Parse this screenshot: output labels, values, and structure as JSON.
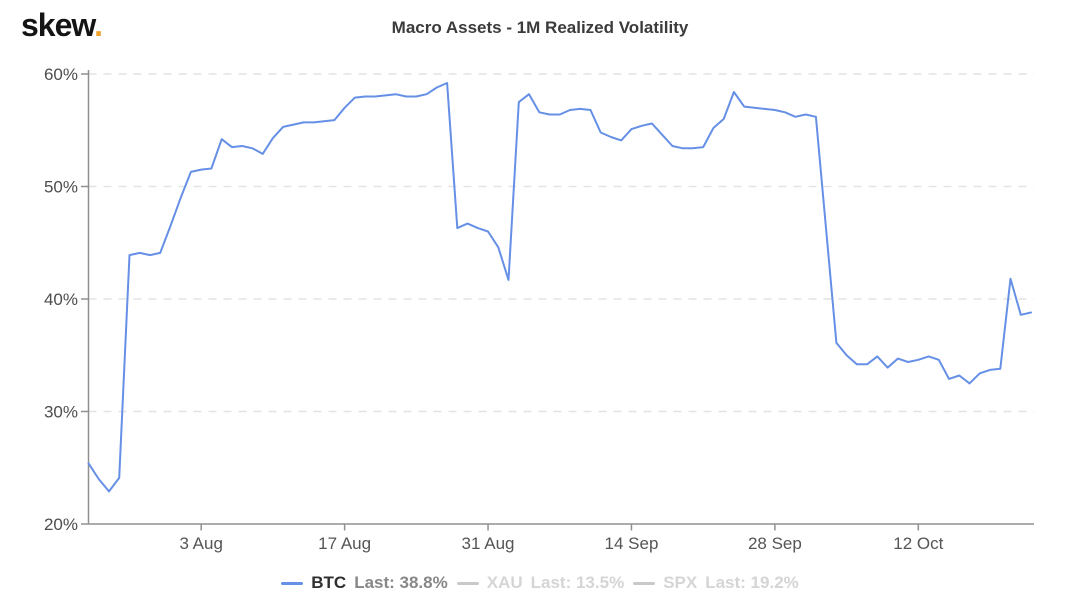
{
  "logo": {
    "text": "skew",
    "dot": "."
  },
  "header": {
    "title": "Macro Assets - 1M Realized Volatility"
  },
  "colors": {
    "btc_line": "#6690e6",
    "inactive_text": "#d5d5d5",
    "inactive_dash": "#c9c9c9",
    "grid": "#e3e3e3",
    "axis": "#909090",
    "title_text": "#3b3b3b",
    "tick_text": "#4d4d4d",
    "logo_dot": "#f0a42e"
  },
  "chart_data": {
    "type": "line",
    "title": "Macro Assets - 1M Realized Volatility",
    "xlabel": "",
    "ylabel": "",
    "ylim": [
      20,
      60
    ],
    "y_ticks": [
      60,
      50,
      40,
      30,
      20
    ],
    "y_tick_suffix": "%",
    "grid": "horizontal-dashed",
    "legend_position": "bottom",
    "total_days": 92,
    "x_ticks": [
      {
        "label": "3 Aug",
        "day": 11
      },
      {
        "label": "17 Aug",
        "day": 25
      },
      {
        "label": "31 Aug",
        "day": 39
      },
      {
        "label": "14 Sep",
        "day": 53
      },
      {
        "label": "28 Sep",
        "day": 67
      },
      {
        "label": "12 Oct",
        "day": 81
      }
    ],
    "series": [
      {
        "name": "BTC",
        "last_label": "Last: 38.8%",
        "last_value": 38.8,
        "active": true,
        "color": "#6690e6",
        "values": [
          25.4,
          24.0,
          22.9,
          24.1,
          43.9,
          44.1,
          43.9,
          44.1,
          46.5,
          49.0,
          51.3,
          51.5,
          51.6,
          54.2,
          53.5,
          53.6,
          53.4,
          52.9,
          54.3,
          55.3,
          55.5,
          55.7,
          55.7,
          55.8,
          55.9,
          57.0,
          57.9,
          58.0,
          58.0,
          58.1,
          58.2,
          58.0,
          58.0,
          58.2,
          58.8,
          59.2,
          46.3,
          46.7,
          46.3,
          46.0,
          44.6,
          41.7,
          57.5,
          58.2,
          56.6,
          56.4,
          56.4,
          56.8,
          56.9,
          56.8,
          54.8,
          54.4,
          54.1,
          55.1,
          55.4,
          55.6,
          54.6,
          53.6,
          53.4,
          53.4,
          53.5,
          55.2,
          56.0,
          58.4,
          57.1,
          57.0,
          56.9,
          56.8,
          56.6,
          56.2,
          56.4,
          56.2,
          46.2,
          36.1,
          35.0,
          34.2,
          34.2,
          34.9,
          33.9,
          34.7,
          34.4,
          34.6,
          34.9,
          34.6,
          32.9,
          33.2,
          32.5,
          33.4,
          33.7,
          33.8,
          41.8,
          38.6,
          38.8
        ]
      },
      {
        "name": "XAU",
        "last_label": "Last: 13.5%",
        "last_value": 13.5,
        "active": false,
        "values": []
      },
      {
        "name": "SPX",
        "last_label": "Last: 19.2%",
        "last_value": 19.2,
        "active": false,
        "values": []
      }
    ]
  }
}
